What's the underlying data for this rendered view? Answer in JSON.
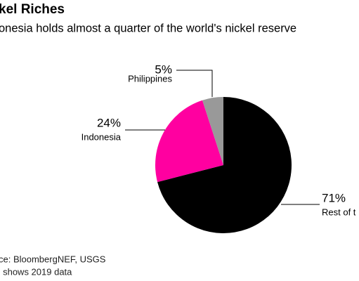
{
  "chart_data": {
    "type": "pie",
    "title": "kel Riches",
    "subtitle": "onesia holds almost a quarter of the world's nickel reserve",
    "categories": [
      "Rest of t",
      "Indonesia",
      "Philippines"
    ],
    "values": [
      71,
      24,
      5
    ],
    "value_labels": [
      "71%",
      "24%",
      "5%"
    ],
    "colors": [
      "#000000",
      "#ff00a0",
      "#999999"
    ],
    "notes": [
      "ce: BloombergNEF, USGS",
      "' shows 2019 data"
    ]
  }
}
